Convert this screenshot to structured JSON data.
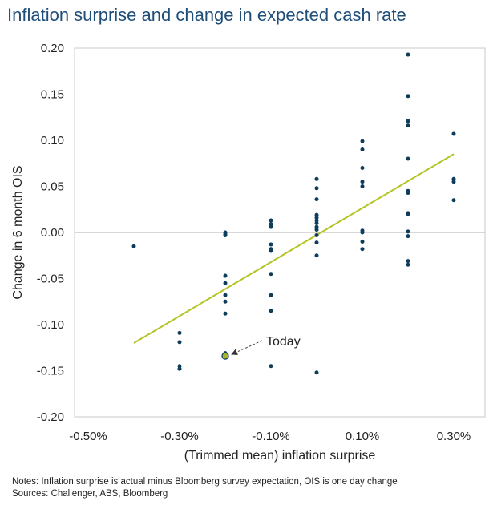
{
  "chart_data": {
    "type": "scatter",
    "title": "Inflation surprise and change in expected cash rate",
    "xlabel": "(Trimmed mean) inflation surprise",
    "ylabel": "Change in 6 month OIS",
    "xlim": [
      -0.5,
      0.4
    ],
    "ylim": [
      -0.2,
      0.2
    ],
    "x_ticks": [
      -0.5,
      -0.3,
      -0.1,
      0.1,
      0.3
    ],
    "x_tick_labels": [
      "-0.50%",
      "-0.30%",
      "-0.10%",
      "0.10%",
      "0.30%"
    ],
    "y_ticks": [
      0.2,
      0.15,
      0.1,
      0.05,
      0.0,
      -0.05,
      -0.1,
      -0.15,
      -0.2
    ],
    "y_tick_labels": [
      "0.20",
      "0.15",
      "0.10",
      "0.05",
      "0.00",
      "-0.05",
      "-0.10",
      "-0.15",
      "-0.20"
    ],
    "grid": false,
    "zero_line": true,
    "points": [
      [
        -0.4,
        -0.015
      ],
      [
        -0.3,
        -0.109
      ],
      [
        -0.3,
        -0.119
      ],
      [
        -0.3,
        -0.145
      ],
      [
        -0.3,
        -0.148
      ],
      [
        -0.2,
        -0.002
      ],
      [
        -0.2,
        0.0
      ],
      [
        -0.2,
        -0.003
      ],
      [
        -0.2,
        -0.047
      ],
      [
        -0.2,
        -0.055
      ],
      [
        -0.2,
        -0.068
      ],
      [
        -0.2,
        -0.075
      ],
      [
        -0.2,
        -0.088
      ],
      [
        -0.2,
        -0.131
      ],
      [
        -0.1,
        0.013
      ],
      [
        -0.1,
        0.009
      ],
      [
        -0.1,
        0.006
      ],
      [
        -0.1,
        -0.013
      ],
      [
        -0.1,
        -0.018
      ],
      [
        -0.1,
        -0.02
      ],
      [
        -0.1,
        -0.045
      ],
      [
        -0.1,
        -0.068
      ],
      [
        -0.1,
        -0.085
      ],
      [
        -0.1,
        -0.145
      ],
      [
        0.0,
        0.058
      ],
      [
        0.0,
        0.048
      ],
      [
        0.0,
        0.036
      ],
      [
        0.0,
        0.019
      ],
      [
        0.0,
        0.016
      ],
      [
        0.0,
        0.013
      ],
      [
        0.0,
        0.01
      ],
      [
        0.0,
        0.006
      ],
      [
        0.0,
        0.003
      ],
      [
        0.0,
        -0.003
      ],
      [
        0.0,
        -0.011
      ],
      [
        0.0,
        -0.025
      ],
      [
        0.0,
        -0.152
      ],
      [
        0.1,
        0.099
      ],
      [
        0.1,
        0.09
      ],
      [
        0.1,
        0.07
      ],
      [
        0.1,
        0.055
      ],
      [
        0.1,
        0.05
      ],
      [
        0.1,
        0.002
      ],
      [
        0.1,
        0.0
      ],
      [
        0.1,
        -0.01
      ],
      [
        0.1,
        -0.018
      ],
      [
        0.2,
        0.193
      ],
      [
        0.2,
        0.148
      ],
      [
        0.2,
        0.121
      ],
      [
        0.2,
        0.116
      ],
      [
        0.2,
        0.08
      ],
      [
        0.2,
        0.045
      ],
      [
        0.2,
        0.043
      ],
      [
        0.2,
        0.021
      ],
      [
        0.2,
        0.02
      ],
      [
        0.2,
        0.001
      ],
      [
        0.2,
        -0.004
      ],
      [
        0.2,
        -0.031
      ],
      [
        0.2,
        -0.035
      ],
      [
        0.3,
        0.107
      ],
      [
        0.3,
        0.058
      ],
      [
        0.3,
        0.055
      ],
      [
        0.3,
        0.035
      ]
    ],
    "trendline": {
      "x": [
        -0.4,
        0.3
      ],
      "y": [
        -0.12,
        0.085
      ]
    },
    "highlight": {
      "label": "Today",
      "x": -0.2,
      "y": -0.134
    },
    "colors": {
      "points": "#0e3d5c",
      "trendline": "#b5c425",
      "highlight_fill": "#a6b52a",
      "title": "#1f4e79"
    }
  },
  "notes": {
    "line1": "Notes: Inflation surprise is actual minus Bloomberg survey expectation, OIS is one day change",
    "line2": "Sources: Challenger, ABS, Bloomberg"
  }
}
